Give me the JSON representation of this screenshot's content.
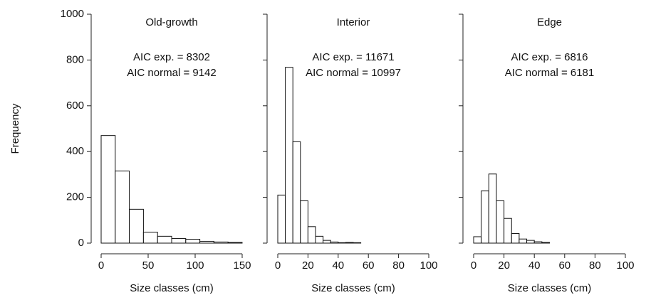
{
  "chart_data": [
    {
      "type": "histogram",
      "title": "Old-growth",
      "annotations": [
        "AIC exp. = 8302",
        "AIC normal = 9142"
      ],
      "xlabel": "Size classes (cm)",
      "ylabel": "Frequency",
      "bins": [
        0,
        15,
        30,
        45,
        60,
        75,
        90,
        105,
        120,
        135,
        150
      ],
      "values": [
        470,
        315,
        148,
        48,
        30,
        20,
        17,
        8,
        5,
        3
      ],
      "xlim": [
        0,
        150
      ],
      "xticks": [
        0,
        50,
        100,
        150
      ],
      "ylim": [
        0,
        1000
      ],
      "yticks": [
        0,
        200,
        400,
        600,
        800,
        1000
      ]
    },
    {
      "type": "histogram",
      "title": "Interior",
      "annotations": [
        "AIC exp. = 11671",
        "AIC normal = 10997"
      ],
      "xlabel": "Size classes (cm)",
      "bins": [
        0,
        5,
        10,
        15,
        20,
        25,
        30,
        35,
        40,
        45,
        50,
        55
      ],
      "values": [
        210,
        768,
        443,
        185,
        72,
        30,
        12,
        5,
        2,
        3,
        2
      ],
      "xlim": [
        0,
        100
      ],
      "xticks": [
        0,
        20,
        40,
        60,
        80,
        100
      ],
      "ylim": [
        0,
        1000
      ]
    },
    {
      "type": "histogram",
      "title": "Edge",
      "annotations": [
        "AIC exp. = 6816",
        "AIC normal = 6181"
      ],
      "xlabel": "Size classes (cm)",
      "bins": [
        0,
        5,
        10,
        15,
        20,
        25,
        30,
        35,
        40,
        45,
        50
      ],
      "values": [
        28,
        228,
        302,
        185,
        108,
        42,
        18,
        12,
        6,
        3
      ],
      "xlim": [
        0,
        100
      ],
      "xticks": [
        0,
        20,
        40,
        60,
        80,
        100
      ],
      "ylim": [
        0,
        1000
      ]
    }
  ]
}
